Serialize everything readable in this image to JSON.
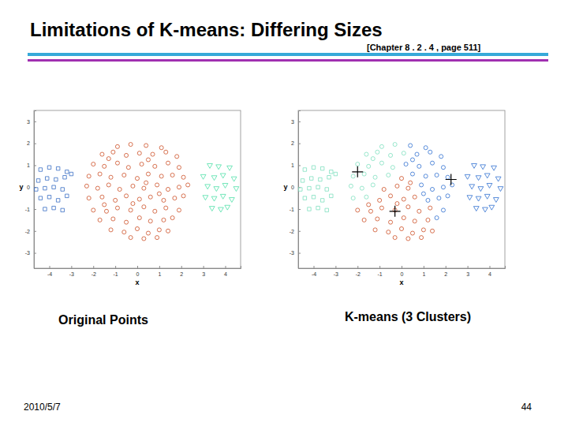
{
  "title": "Limitations of K-means: Differing Sizes",
  "subtitle": "[Chapter 8 . 2 . 4 , page 511]",
  "date": "2010/5/7",
  "page": "44",
  "chart_data": [
    {
      "type": "scatter",
      "title": "Original Points",
      "xlabel": "x",
      "ylabel": "y",
      "xlim": [
        -4.7,
        4.7
      ],
      "ylim": [
        -3.7,
        3.5
      ],
      "xticks": [
        -4,
        -3,
        -2,
        -1,
        0,
        1,
        2,
        3,
        4
      ],
      "yticks": [
        -3,
        -2,
        -1,
        0,
        1,
        2,
        3
      ],
      "series": [
        {
          "color": "#3a6fc4",
          "marker": "square",
          "x": [
            -4.4,
            -4.0,
            -3.6,
            -3.2,
            -4.5,
            -4.1,
            -3.7,
            -3.3,
            -3.0,
            -4.6,
            -4.2,
            -3.8,
            -3.4,
            -4.4,
            -4.0,
            -3.6,
            -3.2,
            -4.2,
            -3.8,
            -3.4
          ],
          "values": [
            0.8,
            0.9,
            0.85,
            0.7,
            0.3,
            0.4,
            0.35,
            0.45,
            0.6,
            -0.1,
            -0.05,
            0.0,
            -0.1,
            -0.5,
            -0.45,
            -0.6,
            -0.4,
            -1.0,
            -0.95,
            -1.05
          ]
        },
        {
          "color": "#cd4f26",
          "marker": "circle",
          "x": [
            -0.9,
            -0.3,
            -1.6,
            -1.1,
            -0.5,
            0.1,
            -2.0,
            -1.5,
            -0.9,
            -0.4,
            -2.2,
            -1.7,
            -1.2,
            -0.6,
            -2.3,
            -1.8,
            -1.3,
            -2.2,
            -1.6,
            -1.3,
            0.0,
            -0.8,
            -0.2,
            0.3,
            -1.0,
            -0.5,
            0.1,
            0.6,
            -2.0,
            -1.4,
            -0.9,
            -0.3,
            0.3,
            0.8,
            1.3,
            -1.7,
            -1.1,
            -0.5,
            0.1,
            0.6,
            1.2,
            -1.2,
            -0.6,
            0.0,
            0.5,
            1.0,
            1.4,
            -0.3,
            0.3,
            0.9,
            -0.2,
            -1.5,
            0.4,
            0.4,
            1.1,
            0.7,
            1.3,
            1.8,
            0.2,
            0.8,
            1.4,
            1.9,
            0.5,
            1.1,
            1.6,
            2.1,
            0.9,
            1.4,
            1.9,
            2.3,
            1.2,
            1.7,
            2.1,
            1.9,
            1.6,
            0.5,
            1.0
          ],
          "values": [
            1.85,
            1.95,
            1.5,
            1.6,
            1.45,
            1.55,
            1.05,
            0.95,
            1.1,
            0.9,
            0.5,
            0.6,
            0.45,
            0.55,
            0.05,
            -0.05,
            0.1,
            -0.5,
            -0.45,
            1.3,
            0.4,
            -0.1,
            0.05,
            -0.05,
            -0.6,
            -0.4,
            -0.55,
            -0.45,
            -1.05,
            -1.1,
            -0.95,
            -1.05,
            -0.9,
            -1.1,
            -0.95,
            -1.5,
            -1.45,
            -1.6,
            -1.4,
            -1.55,
            -1.5,
            -1.95,
            -2.05,
            -1.9,
            -2.1,
            -1.95,
            -2.0,
            -2.3,
            -2.35,
            -2.3,
            -0.75,
            -0.8,
            0.2,
            1.9,
            1.8,
            1.5,
            1.6,
            1.4,
            1.05,
            0.95,
            1.1,
            0.9,
            0.6,
            0.5,
            0.55,
            0.45,
            0.1,
            -0.1,
            0.0,
            0.1,
            -0.6,
            -0.5,
            -0.4,
            -1.05,
            -1.4,
            1.25,
            -0.3
          ]
        },
        {
          "color": "#4fe0a8",
          "marker": "triangle-down",
          "x": [
            3.3,
            3.7,
            4.2,
            3.0,
            3.5,
            3.9,
            4.4,
            3.2,
            3.6,
            4.0,
            4.5,
            3.1,
            3.5,
            3.9,
            4.3,
            3.4,
            3.8,
            4.1
          ],
          "values": [
            1.0,
            0.95,
            0.9,
            0.5,
            0.45,
            0.55,
            0.4,
            0.05,
            -0.05,
            0.1,
            -0.05,
            -0.45,
            -0.5,
            -0.4,
            -0.55,
            -0.95,
            -1.0,
            -0.9
          ]
        }
      ]
    },
    {
      "type": "scatter",
      "title": "K-means (3 Clusters)",
      "xlabel": "x",
      "ylabel": "y",
      "xlim": [
        -4.7,
        4.7
      ],
      "ylim": [
        -3.7,
        3.5
      ],
      "xticks": [
        -4,
        -3,
        -2,
        -1,
        0,
        1,
        2,
        3,
        4
      ],
      "yticks": [
        -3,
        -2,
        -1,
        0,
        1,
        2,
        3
      ],
      "series": [
        {
          "color": "#7fe0bf",
          "marker": "square",
          "x": [
            -4.4,
            -4.0,
            -3.6,
            -3.2,
            -4.5,
            -4.1,
            -3.7,
            -3.3,
            -3.0,
            -4.6,
            -4.2,
            -3.8,
            -3.4,
            -4.4,
            -4.0,
            -3.6,
            -3.2,
            -4.2,
            -3.8,
            -3.4
          ],
          "values": [
            0.8,
            0.9,
            0.85,
            0.7,
            0.3,
            0.4,
            0.35,
            0.45,
            0.6,
            -0.1,
            -0.05,
            0.0,
            -0.1,
            -0.5,
            -0.45,
            -0.6,
            -0.4,
            -1.0,
            -0.95,
            -1.05
          ]
        },
        {
          "color": "#7fe0bf",
          "marker": "circle",
          "x": [
            -0.9,
            -0.3,
            -1.6,
            -1.1,
            -0.5,
            0.1,
            -2.0,
            -1.5,
            -0.9,
            -0.4,
            -2.2,
            -1.7,
            -1.2,
            -0.6,
            -2.3,
            -1.8,
            -1.3,
            -2.2,
            -1.6,
            -1.3
          ],
          "values": [
            1.85,
            1.95,
            1.5,
            1.6,
            1.45,
            1.55,
            1.05,
            0.95,
            1.1,
            0.9,
            0.5,
            0.6,
            0.45,
            0.55,
            0.05,
            -0.05,
            0.1,
            -0.5,
            -0.45,
            1.3
          ]
        },
        {
          "color": "#cd4f26",
          "marker": "circle",
          "x": [
            0.0,
            -0.8,
            -0.2,
            0.3,
            -1.0,
            -0.5,
            0.1,
            0.6,
            -2.0,
            -1.4,
            -0.9,
            -0.3,
            0.3,
            0.8,
            1.3,
            -1.7,
            -1.1,
            -0.5,
            0.1,
            0.6,
            1.2,
            -1.2,
            -0.6,
            0.0,
            0.5,
            1.0,
            1.4,
            -0.3,
            0.3,
            0.9,
            -0.2,
            -1.5,
            0.4
          ],
          "values": [
            0.4,
            -0.1,
            0.05,
            -0.05,
            -0.6,
            -0.4,
            -0.55,
            -0.45,
            -1.05,
            -1.1,
            -0.95,
            -1.05,
            -0.9,
            -1.1,
            -0.95,
            -1.5,
            -1.45,
            -1.6,
            -1.4,
            -1.55,
            -1.5,
            -1.95,
            -2.05,
            -1.9,
            -2.1,
            -1.95,
            -2.0,
            -2.3,
            -2.35,
            -2.3,
            -0.75,
            -0.8,
            0.2
          ]
        },
        {
          "color": "#3070d0",
          "marker": "circle",
          "x": [
            0.4,
            1.1,
            0.7,
            1.3,
            1.8,
            0.2,
            0.8,
            1.4,
            1.9,
            0.5,
            1.1,
            1.6,
            2.1,
            0.9,
            1.4,
            1.9,
            2.3,
            1.2,
            1.7,
            2.1,
            1.9,
            1.6,
            0.5,
            1.0
          ],
          "values": [
            1.9,
            1.8,
            1.5,
            1.6,
            1.4,
            1.05,
            0.95,
            1.1,
            0.9,
            0.6,
            0.5,
            0.55,
            0.45,
            0.1,
            -0.1,
            0.0,
            0.1,
            -0.6,
            -0.5,
            -0.4,
            -1.05,
            -1.4,
            1.25,
            -0.3
          ]
        },
        {
          "color": "#3070d0",
          "marker": "triangle-down",
          "x": [
            3.3,
            3.7,
            4.2,
            3.0,
            3.5,
            3.9,
            4.4,
            3.2,
            3.6,
            4.0,
            4.5,
            3.1,
            3.5,
            3.9,
            4.3,
            3.4,
            3.8,
            4.1
          ],
          "values": [
            1.0,
            0.95,
            0.9,
            0.5,
            0.45,
            0.55,
            0.4,
            0.05,
            -0.05,
            0.1,
            -0.05,
            -0.45,
            -0.5,
            -0.4,
            -0.55,
            -0.95,
            -1.0,
            -0.9
          ]
        },
        {
          "color": "#000000",
          "marker": "plus",
          "x": [
            -2.0,
            2.25,
            -0.3
          ],
          "values": [
            0.7,
            0.35,
            -1.1
          ]
        }
      ]
    }
  ]
}
